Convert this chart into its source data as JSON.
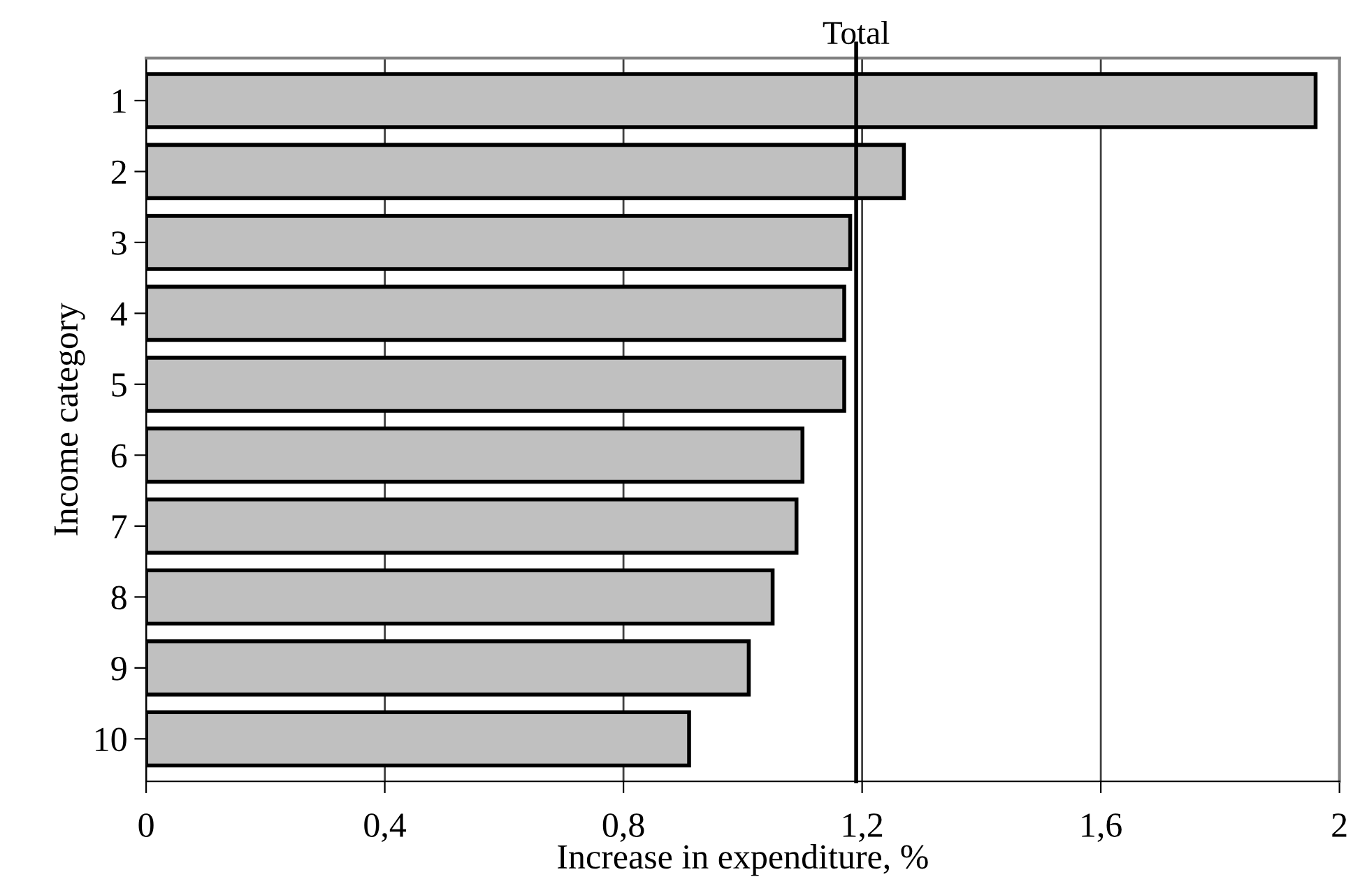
{
  "chart_data": {
    "type": "bar",
    "orientation": "horizontal",
    "xlabel": "Increase in expenditure, %",
    "ylabel": "Income category",
    "categories": [
      "1",
      "2",
      "3",
      "4",
      "5",
      "6",
      "7",
      "8",
      "9",
      "10"
    ],
    "series": [
      {
        "color": "#c0c0c0",
        "values": [
          1.96,
          1.27,
          1.18,
          1.17,
          1.17,
          1.1,
          1.09,
          1.05,
          1.01,
          0.91
        ]
      }
    ],
    "xlim": [
      0,
      2
    ],
    "xticks": [
      0,
      {
        "value": 0.4,
        "label": "0,4"
      },
      {
        "value": 0.8,
        "label": "0,8"
      },
      {
        "value": 1.2,
        "label": "1,2"
      },
      {
        "value": 1.6,
        "label": "1,6"
      },
      2
    ],
    "grid": "x",
    "legend": false,
    "ref_lines": [
      {
        "axis": "x",
        "value": 1.19,
        "label": "Total",
        "color": "#000000"
      }
    ]
  }
}
